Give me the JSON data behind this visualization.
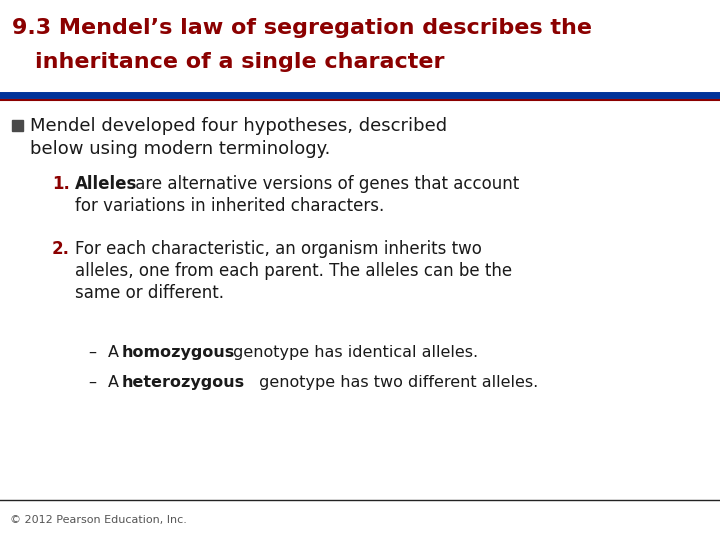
{
  "title_line1": "9.3 Mendel’s law of segregation describes the",
  "title_line2": "inheritance of a single character",
  "title_color": "#8B0000",
  "title_fontsize": 16,
  "separator_color_top": "#003399",
  "separator_color_bottom": "#8B0000",
  "background_color": "#FFFFFF",
  "bullet_square_color": "#4A4A4A",
  "bullet_fontsize": 13,
  "item_fontsize": 12,
  "sub_fontsize": 11.5,
  "footer": "© 2012 Pearson Education, Inc.",
  "footer_fontsize": 8,
  "footer_color": "#555555",
  "text_color": "#1A1A1A",
  "number_color": "#8B0000"
}
